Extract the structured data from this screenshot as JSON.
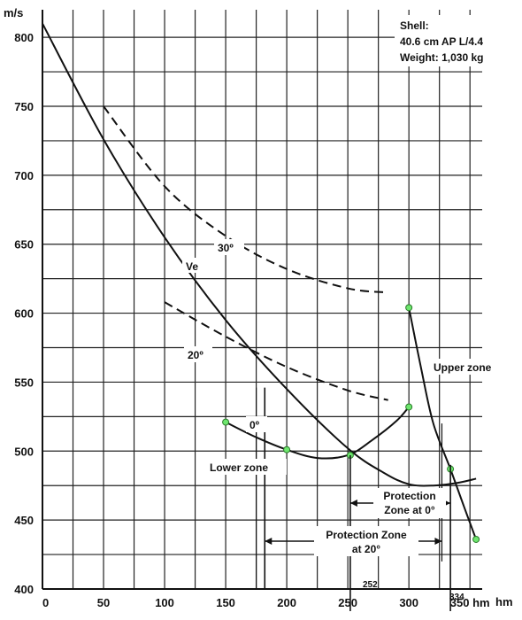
{
  "chart_data": {
    "type": "line",
    "title": "",
    "y_unit": "m/s",
    "x_unit": "hm",
    "xlim": [
      0,
      360
    ],
    "ylim": [
      400,
      820
    ],
    "x_ticks": [
      0,
      50,
      100,
      150,
      200,
      250,
      300,
      350
    ],
    "y_ticks": [
      400,
      450,
      500,
      550,
      600,
      650,
      700,
      750,
      800
    ],
    "x_tick_labels": [
      "0",
      "50",
      "100",
      "150",
      "200",
      "250",
      "300",
      "350 hm"
    ],
    "y_tick_labels": [
      "400",
      "450",
      "500",
      "550",
      "600",
      "650",
      "700",
      "750",
      "800"
    ],
    "shell_info": [
      "Shell:",
      "40.6 cm AP L/4.4",
      "Weight: 1,030 kg"
    ],
    "series": [
      {
        "name": "Ve",
        "style": "solid",
        "points": [
          [
            0,
            810
          ],
          [
            50,
            726
          ],
          [
            100,
            655
          ],
          [
            150,
            595
          ],
          [
            200,
            545
          ],
          [
            250,
            502
          ],
          [
            280,
            484
          ],
          [
            300,
            476
          ],
          [
            320,
            475
          ],
          [
            340,
            477
          ],
          [
            355,
            480
          ]
        ]
      },
      {
        "name": "30º",
        "style": "dashed",
        "points": [
          [
            50,
            750
          ],
          [
            100,
            692
          ],
          [
            150,
            656
          ],
          [
            200,
            632
          ],
          [
            250,
            618
          ],
          [
            283,
            615
          ]
        ]
      },
      {
        "name": "20º",
        "style": "dashed",
        "points": [
          [
            100,
            608
          ],
          [
            150,
            583
          ],
          [
            200,
            561
          ],
          [
            250,
            544
          ],
          [
            283,
            537
          ]
        ]
      },
      {
        "name": "0º",
        "style": "solid",
        "points": [
          [
            150,
            521
          ],
          [
            175,
            510
          ],
          [
            200,
            501
          ],
          [
            225,
            495
          ],
          [
            250,
            497
          ],
          [
            270,
            508
          ],
          [
            290,
            522
          ],
          [
            300,
            532
          ]
        ]
      },
      {
        "name": "Upper zone",
        "style": "solid",
        "points": [
          [
            300,
            604
          ],
          [
            310,
            560
          ],
          [
            320,
            520
          ],
          [
            334,
            487
          ],
          [
            345,
            460
          ],
          [
            355,
            436
          ]
        ]
      }
    ],
    "markers": [
      {
        "x": 150,
        "y": 521
      },
      {
        "x": 200,
        "y": 501
      },
      {
        "x": 252,
        "y": 497
      },
      {
        "x": 300,
        "y": 532
      },
      {
        "x": 300,
        "y": 604
      },
      {
        "x": 334,
        "y": 487
      },
      {
        "x": 355,
        "y": 436
      }
    ],
    "annotations": {
      "ve": "Ve",
      "deg30": "30º",
      "deg20": "20º",
      "deg0": "0º",
      "lower_zone": "Lower zone",
      "upper_zone": "Upper zone",
      "pz0": [
        "Protection",
        "Zone at 0°"
      ],
      "pz20": [
        "Protection Zone",
        "at 20°"
      ],
      "mark252": "252",
      "mark334": "334"
    },
    "grid": true
  }
}
